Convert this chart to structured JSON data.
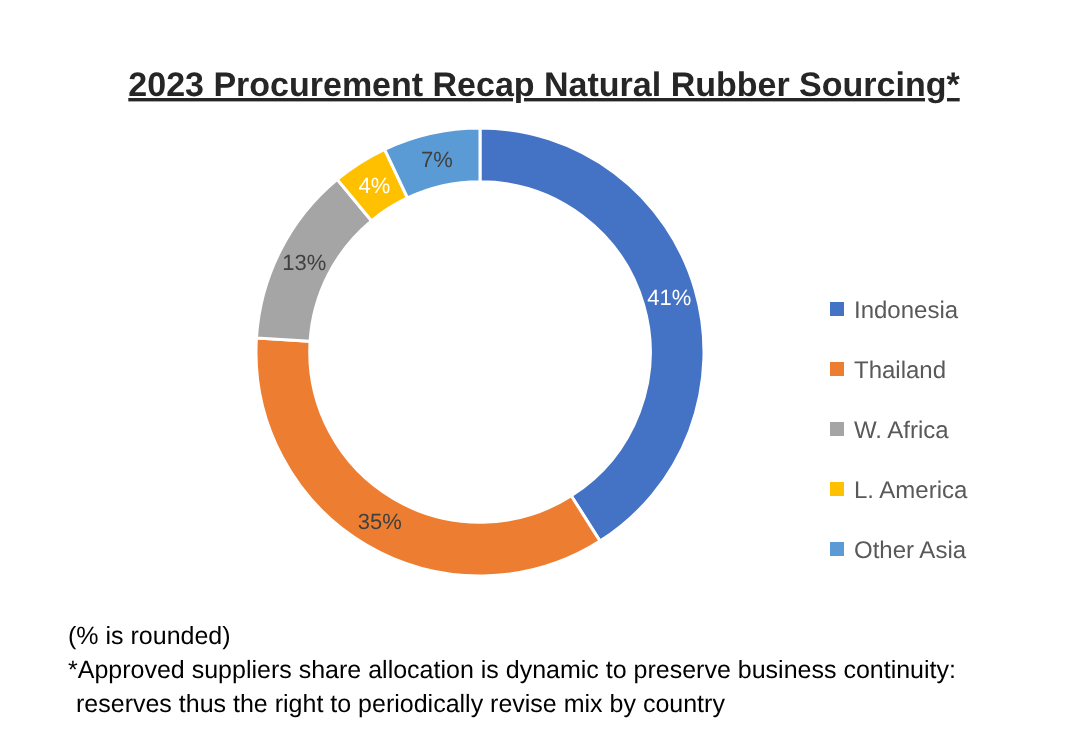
{
  "chart_data": {
    "type": "donut",
    "title": "2023 Procurement Recap Natural Rubber Sourcing*",
    "categories": [
      "Indonesia",
      "Thailand",
      "W. Africa",
      "L. America",
      "Other Asia"
    ],
    "values": [
      41,
      35,
      13,
      4,
      7
    ],
    "colors": [
      "#4472c4",
      "#ed7d31",
      "#a5a5a5",
      "#ffc000",
      "#5b9bd5"
    ],
    "value_labels": [
      "41%",
      "35%",
      "13%",
      "4%",
      "7%"
    ],
    "legend": "right",
    "annotations": [
      "(% is rounded)",
      "*Approved suppliers share allocation is dynamic to preserve business continuity:",
      "reserves thus the right to periodically revise mix by country"
    ]
  }
}
